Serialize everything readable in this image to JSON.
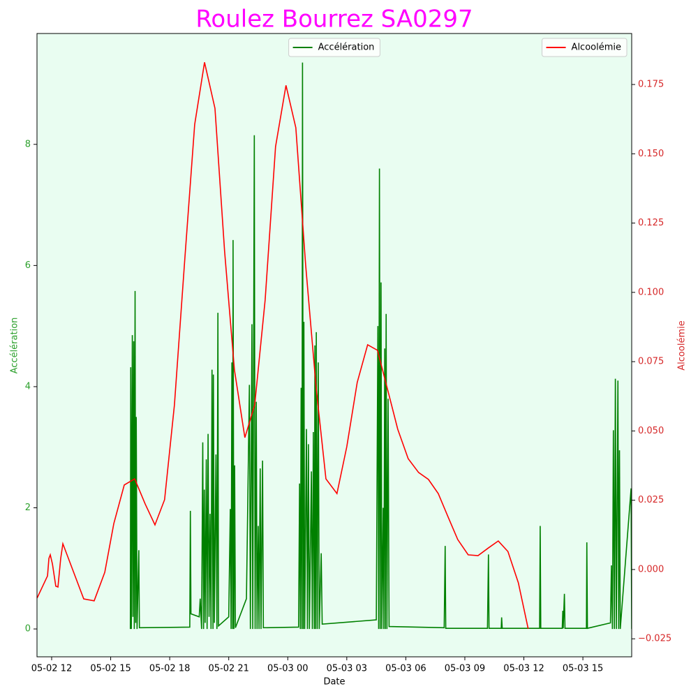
{
  "chart_data": {
    "type": "line",
    "title": "Roulez Bourrez SA0297",
    "x_label": "Date",
    "y_label": "Accélération",
    "y2_label": "Alcoolémie",
    "y_color": "#2ca02c",
    "y2_color": "#d62728",
    "title_color": "#ff00ff",
    "background": "#e9fdf1",
    "xlim": [
      11.255,
      41.48
    ],
    "xticks": [
      {
        "value": 12,
        "label": "05-02 12"
      },
      {
        "value": 15,
        "label": "05-02 15"
      },
      {
        "value": 18,
        "label": "05-02 18"
      },
      {
        "value": 21,
        "label": "05-02 21"
      },
      {
        "value": 24,
        "label": "05-03 00"
      },
      {
        "value": 27,
        "label": "05-03 03"
      },
      {
        "value": 30,
        "label": "05-03 06"
      },
      {
        "value": 33,
        "label": "05-03 09"
      },
      {
        "value": 36,
        "label": "05-03 12"
      },
      {
        "value": 39,
        "label": "05-03 15"
      }
    ],
    "ylim": [
      -0.46,
      9.83
    ],
    "yticks": [
      0,
      2,
      4,
      6,
      8
    ],
    "y2lim": [
      -0.0315,
      0.1934
    ],
    "y2ticks": [
      {
        "value": -0.025,
        "label": "−0.025"
      },
      {
        "value": 0,
        "label": "0.000"
      },
      {
        "value": 0.025,
        "label": "0.025"
      },
      {
        "value": 0.05,
        "label": "0.050"
      },
      {
        "value": 0.075,
        "label": "0.075"
      },
      {
        "value": 0.1,
        "label": "0.100"
      },
      {
        "value": 0.125,
        "label": "0.125"
      },
      {
        "value": 0.15,
        "label": "0.150"
      },
      {
        "value": 0.175,
        "label": "0.175"
      }
    ],
    "series": [
      {
        "name": "Accélération",
        "color": "#008000",
        "axis": "y",
        "legend": "upper center",
        "x": [
          16.0,
          16.02,
          16.05,
          16.1,
          16.13,
          16.17,
          16.2,
          16.24,
          16.27,
          16.3,
          16.34,
          16.43,
          16.46,
          19.02,
          19.05,
          19.08,
          19.5,
          19.55,
          19.62,
          19.68,
          19.72,
          19.76,
          19.8,
          19.86,
          19.9,
          19.95,
          20.0,
          20.05,
          20.1,
          20.15,
          20.2,
          20.22,
          20.27,
          20.35,
          20.4,
          20.45,
          20.48,
          21.0,
          21.08,
          21.12,
          21.16,
          21.2,
          21.22,
          21.26,
          21.3,
          21.34,
          21.9,
          22.05,
          22.1,
          22.18,
          22.22,
          22.3,
          22.34,
          22.4,
          22.44,
          22.5,
          22.54,
          22.6,
          22.64,
          22.72,
          22.76,
          24.55,
          24.6,
          24.64,
          24.68,
          24.72,
          24.75,
          24.79,
          24.82,
          24.86,
          24.95,
          25.0,
          25.05,
          25.1,
          25.2,
          25.25,
          25.3,
          25.35,
          25.38,
          25.42,
          25.45,
          25.5,
          25.55,
          25.6,
          25.7,
          25.75,
          28.5,
          28.58,
          28.62,
          28.66,
          28.7,
          28.74,
          28.78,
          28.85,
          28.88,
          28.93,
          28.96,
          29.0,
          29.04,
          29.1,
          29.15,
          31.95,
          32.0,
          32.03,
          34.15,
          34.2,
          34.23,
          34.85,
          34.87,
          34.9,
          36.8,
          36.83,
          36.86,
          37.95,
          37.98,
          38.0,
          38.06,
          38.09,
          39.18,
          39.2,
          39.23,
          40.4,
          40.45,
          40.5,
          40.55,
          40.6,
          40.65,
          40.7,
          40.78,
          40.82,
          40.86,
          40.9,
          41.45,
          41.48
        ],
        "values": [
          0,
          4.32,
          0,
          4.85,
          0.2,
          4.75,
          0,
          5.58,
          0.1,
          3.5,
          0,
          1.3,
          0.02,
          0.03,
          1.95,
          0.25,
          0.2,
          0.5,
          0,
          3.08,
          0,
          2.3,
          0.1,
          2.8,
          0,
          3.22,
          0.2,
          1.9,
          0,
          4.28,
          0,
          4.2,
          0.1,
          2.88,
          0,
          5.22,
          0.05,
          0.2,
          1.98,
          0,
          4.4,
          0,
          6.42,
          0,
          2.7,
          0.02,
          0.5,
          4.03,
          0,
          5.03,
          0,
          8.15,
          0,
          3.75,
          0,
          1.7,
          0,
          2.65,
          0,
          2.78,
          0.02,
          0.03,
          2.4,
          0,
          3.98,
          0,
          9.35,
          0,
          5.07,
          0,
          3.3,
          0,
          3.05,
          0,
          2.6,
          0,
          3.25,
          0,
          4.68,
          0,
          4.9,
          0,
          4.4,
          0,
          1.25,
          0.08,
          0.15,
          5.0,
          0,
          7.6,
          0,
          5.72,
          0,
          2.0,
          0,
          4.63,
          0,
          5.2,
          0,
          3.8,
          0.04,
          0.02,
          1.37,
          0.01,
          0.01,
          1.23,
          0.01,
          0.01,
          0.19,
          0.01,
          0.01,
          1.7,
          0.01,
          0.01,
          0.3,
          0.01,
          0.58,
          0.01,
          0.01,
          1.43,
          0.01,
          0.1,
          1.05,
          0,
          3.28,
          0,
          4.13,
          0,
          4.1,
          0,
          2.95,
          0,
          2.32,
          0
        ]
      },
      {
        "name": "Alcoolémie",
        "color": "#ff0000",
        "axis": "y2",
        "legend": "upper right",
        "x": [
          11.26,
          11.79,
          11.86,
          11.93,
          12.04,
          12.21,
          12.32,
          12.46,
          12.57,
          13.63,
          14.16,
          14.7,
          15.16,
          15.69,
          16.22,
          16.75,
          17.25,
          17.74,
          18.24,
          18.77,
          19.27,
          19.77,
          20.3,
          20.79,
          21.29,
          21.82,
          22.32,
          22.85,
          23.38,
          23.91,
          24.41,
          24.91,
          25.44,
          25.94,
          26.5,
          27.0,
          27.53,
          28.06,
          28.56,
          29.09,
          29.59,
          30.12,
          30.65,
          31.15,
          31.65,
          32.14,
          32.64,
          33.17,
          33.67,
          34.2,
          34.7,
          35.19,
          35.72,
          36.22
        ],
        "values": [
          -0.0103,
          -0.0023,
          0.004,
          0.0053,
          0.002,
          -0.006,
          -0.0063,
          0.004,
          0.0093,
          -0.0106,
          -0.0113,
          -0.001,
          0.0166,
          0.0305,
          0.0327,
          0.0237,
          0.0161,
          0.0252,
          0.0594,
          0.1123,
          0.1606,
          0.183,
          0.1664,
          0.1148,
          0.072,
          0.0476,
          0.0594,
          0.0972,
          0.1526,
          0.1747,
          0.1594,
          0.1098,
          0.0657,
          0.0327,
          0.0274,
          0.0443,
          0.0675,
          0.0811,
          0.0791,
          0.0645,
          0.0506,
          0.04,
          0.035,
          0.0325,
          0.0274,
          0.0191,
          0.0108,
          0.0053,
          0.005,
          0.0078,
          0.0103,
          0.0065,
          -0.0048,
          -0.0214
        ]
      }
    ]
  }
}
